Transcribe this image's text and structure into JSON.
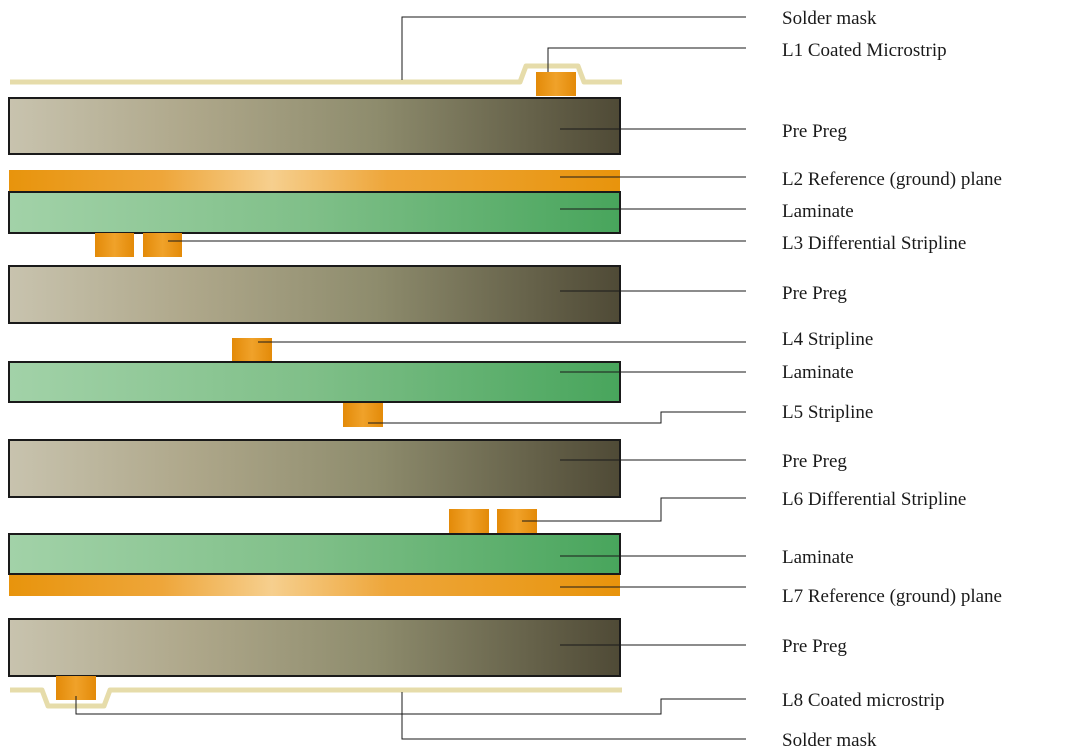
{
  "diagram": {
    "labels": {
      "solder_mask_top": "Solder mask",
      "l1": "L1 Coated Microstrip",
      "prepreg_1": "Pre Preg",
      "l2": "L2 Reference (ground) plane",
      "laminate_1": "Laminate",
      "l3": "L3 Differential Stripline",
      "prepreg_2": "Pre Preg",
      "l4": "L4 Stripline",
      "laminate_2": "Laminate",
      "l5": "L5 Stripline",
      "prepreg_3": "Pre Preg",
      "l6": "L6 Differential Stripline",
      "laminate_3": "Laminate",
      "l7": "L7 Reference (ground) plane",
      "prepreg_4": "Pre Preg",
      "l8": "L8 Coated microstrip",
      "solder_mask_bottom": "Solder mask"
    },
    "colors": {
      "copper": "#e8940c",
      "copper_highlight": "#f6cf8e",
      "prepreg_light": "#c8c3ae",
      "prepreg_mid": "#a8a07f",
      "prepreg_dark": "#4f4a36",
      "laminate_light": "#9fd0a6",
      "laminate_dark": "#4aa65e",
      "solder_mask": "#e6dcaa",
      "outline": "#1a1a1a"
    }
  }
}
